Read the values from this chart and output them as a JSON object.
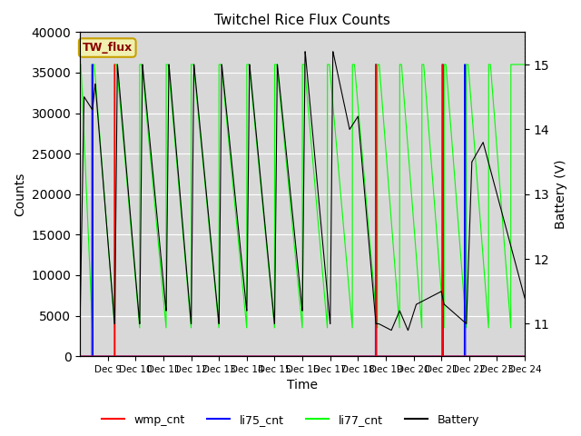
{
  "title": "Twitchel Rice Flux Counts",
  "xlabel": "Time",
  "ylabel_left": "Counts",
  "ylabel_right": "Battery (V)",
  "ylim_left": [
    0,
    40000
  ],
  "ylim_right": [
    10.5,
    15.5
  ],
  "x_tick_labels": [
    "Dec 9",
    "Dec 10",
    "Dec 11",
    "Dec 12",
    "Dec 13",
    "Dec 14",
    "Dec 15",
    "Dec 16",
    "Dec 17",
    "Dec 18",
    "Dec 19",
    "Dec 20",
    "Dec 21",
    "Dec 22",
    "Dec 23",
    "Dec 24"
  ],
  "legend_labels": [
    "wmp_cnt",
    "li75_cnt",
    "li77_cnt",
    "Battery"
  ],
  "legend_colors": [
    "red",
    "blue",
    "lime",
    "black"
  ],
  "annotation_text": "TW_flux",
  "annotation_color": "#8b0000",
  "annotation_bg": "#f0f0b0",
  "annotation_border": "#c8a000",
  "wmp_cnt_color": "red",
  "li75_cnt_color": "blue",
  "li77_cnt_color": "lime",
  "battery_color": "black",
  "bg_color": "#d8d8d8",
  "figsize": [
    6.4,
    4.8
  ],
  "dpi": 100
}
